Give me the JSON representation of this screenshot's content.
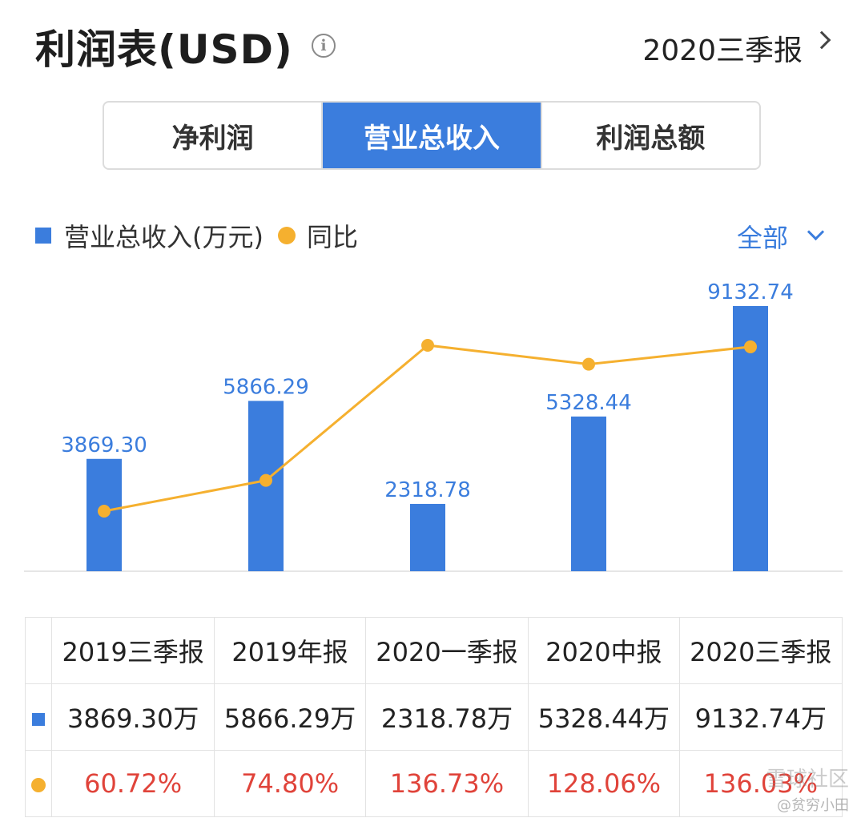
{
  "header": {
    "title": "利润表(USD)",
    "info_icon": "info-icon",
    "period_label": "2020三季报",
    "period_icon": "chevron-right-icon"
  },
  "tabs": [
    {
      "label": "净利润",
      "active": false
    },
    {
      "label": "营业总收入",
      "active": true
    },
    {
      "label": "利润总额",
      "active": false
    }
  ],
  "legend": {
    "bar_label": "营业总收入(万元)",
    "line_label": "同比"
  },
  "filter": {
    "label": "全部",
    "icon": "chevron-down-icon"
  },
  "colors": {
    "accent": "#3b7ddd",
    "line": "#f5b02f",
    "negative_red": "#e0433a"
  },
  "chart_data": {
    "type": "bar",
    "categories": [
      "2019三季报",
      "2019年报",
      "2020一季报",
      "2020中报",
      "2020三季报"
    ],
    "series": [
      {
        "name": "营业总收入(万元)",
        "type": "bar",
        "values": [
          3869.3,
          5866.29,
          2318.78,
          5328.44,
          9132.74
        ],
        "labels": [
          "3869.30",
          "5866.29",
          "2318.78",
          "5328.44",
          "9132.74"
        ]
      },
      {
        "name": "同比",
        "type": "line",
        "values": [
          60.72,
          74.8,
          136.73,
          128.06,
          136.03
        ]
      }
    ],
    "ylim": [
      0,
      9132.74
    ],
    "grid": false
  },
  "table": {
    "columns": [
      "2019三季报",
      "2019年报",
      "2020一季报",
      "2020中报",
      "2020三季报"
    ],
    "revenue": [
      "3869.30万",
      "5866.29万",
      "2318.78万",
      "5328.44万",
      "9132.74万"
    ],
    "yoy": [
      "60.72%",
      "74.80%",
      "136.73%",
      "128.06%",
      "136.03%"
    ]
  },
  "watermark": {
    "main": "雪球社区",
    "sub": "@贫穷小田"
  }
}
